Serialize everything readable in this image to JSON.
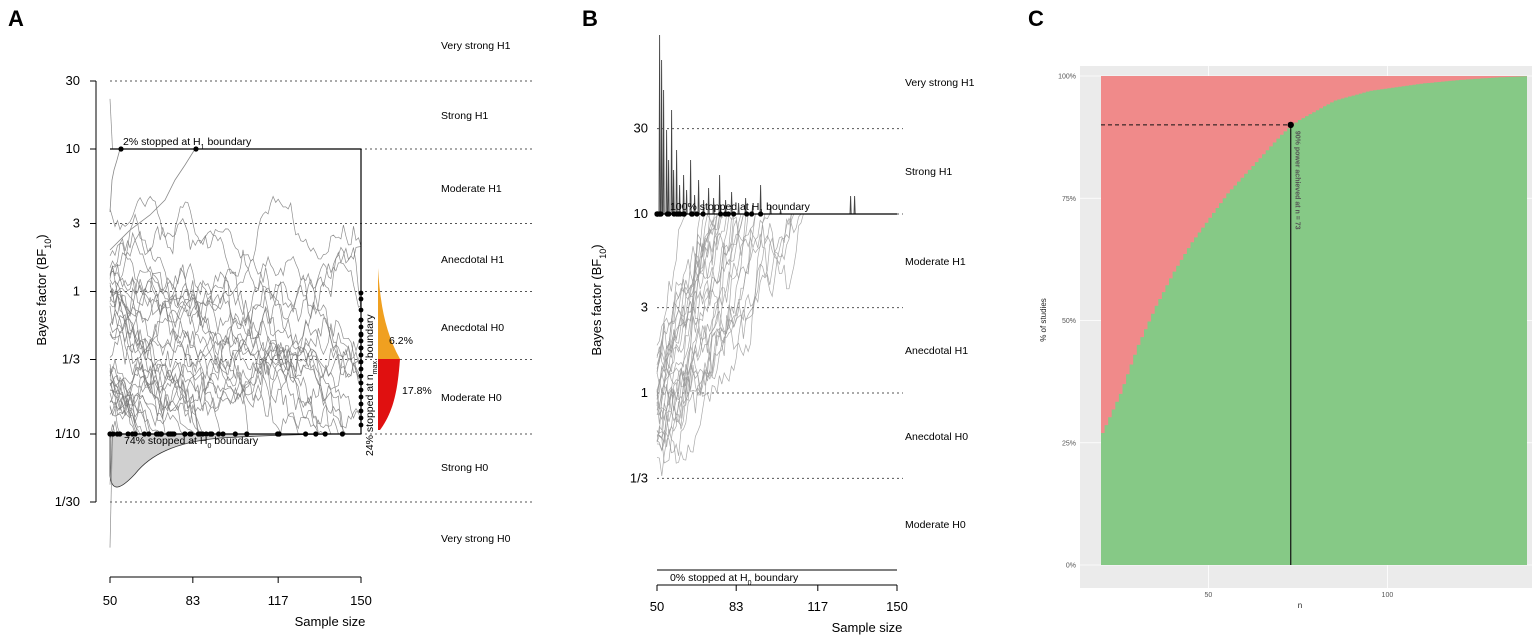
{
  "chart_data": [
    {
      "panel": "A",
      "type": "line",
      "ylabel": "Bayes factor (BF",
      "ylabel_sub": "10",
      "ylabel_close": ")",
      "xlabel": "Sample size",
      "x_ticks": [
        "50",
        "83",
        "117",
        "150"
      ],
      "y_ticks": [
        "30",
        "10",
        "3",
        "1",
        "1/3",
        "1/10",
        "1/30"
      ],
      "y_scale": "log",
      "xlim": [
        50,
        150
      ],
      "evidence_zones": [
        "Very strong H1",
        "Strong H1",
        "Moderate H1",
        "Anecdotal H1",
        "Anecdotal H0",
        "Moderate H0",
        "Strong H0",
        "Very strong H0"
      ],
      "boundaries": {
        "h1": 10,
        "h0": 0.1
      },
      "annotations": {
        "h1_pre": "2% stopped at H",
        "h1_sub": "1",
        "h1_post": " boundary",
        "h0_pre": "74% stopped at H",
        "h0_sub": "0",
        "h0_post": " boundary",
        "nmax_pre": "24% stopped at n",
        "nmax_sub": "max",
        "nmax_post": " boundary",
        "pct_anecdotal": "6.2%",
        "pct_moderate": "17.8%"
      },
      "colors": {
        "paths": "#7a7a7a",
        "anecdotal_density": "#f0a020",
        "moderate_density": "#e01010",
        "h0_density": "#d0d0d0"
      }
    },
    {
      "panel": "B",
      "type": "line",
      "ylabel": "Bayes factor (BF",
      "ylabel_sub": "10",
      "ylabel_close": ")",
      "xlabel": "Sample size",
      "x_ticks": [
        "50",
        "83",
        "117",
        "150"
      ],
      "y_ticks": [
        "30",
        "10",
        "3",
        "1",
        "1/3"
      ],
      "y_scale": "log",
      "xlim": [
        50,
        150
      ],
      "evidence_zones": [
        "Very strong H1",
        "Strong H1",
        "Moderate H1",
        "Anecdotal H1",
        "Anecdotal H0",
        "Moderate H0"
      ],
      "boundaries": {
        "h1": 10
      },
      "annotations": {
        "h1_pre": "100% stopped at H",
        "h1_sub": "1",
        "h1_post": " boundary",
        "h0_pre": "0% stopped at H",
        "h0_sub": "0",
        "h0_post": " boundary"
      },
      "colors": {
        "paths": "#8a8a8a",
        "h1_density": "#555555"
      }
    },
    {
      "panel": "C",
      "type": "area",
      "xlabel": "n",
      "ylabel": "% of studies",
      "x_ticks": [
        50,
        100
      ],
      "xlim": [
        20,
        140
      ],
      "y_ticks": [
        "0%",
        "25%",
        "50%",
        "75%",
        "100%"
      ],
      "ylim": [
        0,
        100
      ],
      "power_line": {
        "n": 73,
        "power": 90,
        "label": "90% power achieved at n = 73"
      },
      "cumulative_power": {
        "n": [
          20,
          25,
          30,
          35,
          40,
          45,
          50,
          55,
          60,
          65,
          70,
          73,
          75,
          80,
          85,
          90,
          95,
          100,
          110,
          120,
          130,
          140
        ],
        "value": [
          27,
          35,
          45,
          53,
          60,
          66,
          71,
          76,
          80,
          84,
          88,
          90,
          91,
          93,
          95,
          96,
          97,
          97.5,
          98.5,
          99.2,
          99.7,
          100
        ]
      },
      "colors": {
        "not_stopped": "#f08a8a",
        "stopped": "#86c986"
      }
    }
  ],
  "panel_labels": [
    "A",
    "B",
    "C"
  ]
}
